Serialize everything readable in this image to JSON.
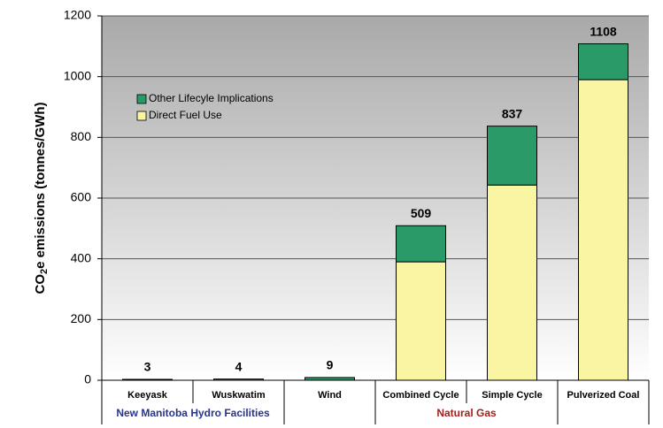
{
  "chart_data": {
    "type": "stacked_bar",
    "y_label": [
      "CO",
      "2",
      "e emissions (tonnes/GWh)"
    ],
    "categories": [
      "Keeyask",
      "Wuskwatim",
      "Wind",
      "Combined Cycle",
      "Simple Cycle",
      "Pulverized Coal"
    ],
    "series": [
      {
        "name": "Direct Fuel Use",
        "color": "#faf5a2",
        "values": [
          0,
          0,
          0,
          390,
          643,
          990
        ]
      },
      {
        "name": "Other Lifecyle Implications",
        "color": "#2a9a68",
        "values": [
          3,
          4,
          9,
          119,
          194,
          118
        ]
      }
    ],
    "total_labels": [
      3,
      4,
      9,
      509,
      837,
      1108
    ],
    "groups": [
      {
        "label": "New Manitoba Hydro Facilities",
        "color": "#27358a"
      },
      {
        "label": "Natural Gas",
        "color": "#a3201c"
      }
    ],
    "ylim": [
      0,
      1200
    ],
    "yticks": [
      0,
      200,
      400,
      600,
      800,
      1000,
      1200
    ],
    "grid": true
  }
}
